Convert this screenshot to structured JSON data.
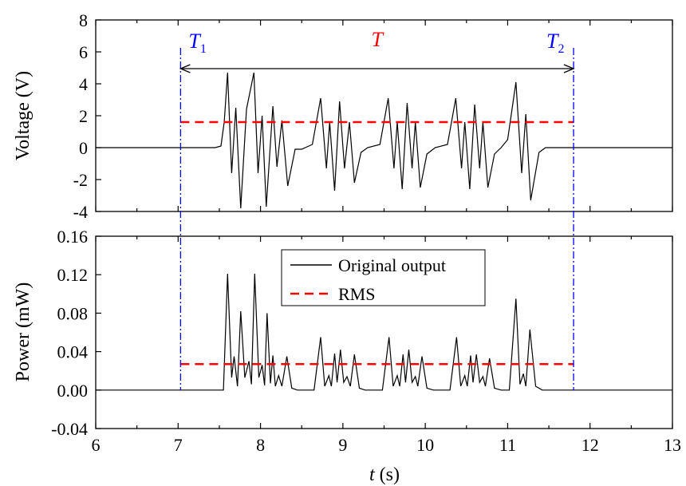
{
  "chart_data": {
    "type": "line",
    "x_axis": {
      "label_var": "t",
      "label_unit": "(s)",
      "range": [
        6,
        13
      ],
      "ticks": [
        "6",
        "7",
        "8",
        "9",
        "10",
        "11",
        "12",
        "13"
      ]
    },
    "colors": {
      "signal": "#000000",
      "rms": "#ff0000",
      "marker": "#0000ff",
      "annotation_T": "#ff0000"
    },
    "annotations": {
      "t1": {
        "x": 7.03,
        "letter": "T",
        "subscript": "1"
      },
      "t2": {
        "x": 11.8,
        "letter": "T",
        "subscript": "2"
      },
      "span": {
        "letter": "T"
      }
    },
    "panels": [
      {
        "id": "voltage",
        "ylabel": "Voltage (V)",
        "ylim": [
          -4,
          8
        ],
        "yticks": [
          "-4",
          "-2",
          "0",
          "2",
          "4",
          "6",
          "8"
        ],
        "rms_value": 1.6,
        "series": [
          {
            "kind": "signal",
            "points": [
              [
                6,
                0
              ],
              [
                7.45,
                0
              ],
              [
                7.52,
                0.1
              ],
              [
                7.56,
                1.6
              ],
              [
                7.6,
                4.7
              ],
              [
                7.65,
                -1.6
              ],
              [
                7.7,
                2.5
              ],
              [
                7.76,
                -3.8
              ],
              [
                7.83,
                2.4
              ],
              [
                7.92,
                4.7
              ],
              [
                7.97,
                -1.6
              ],
              [
                8.02,
                2.0
              ],
              [
                8.07,
                -3.7
              ],
              [
                8.15,
                2.6
              ],
              [
                8.2,
                -1.2
              ],
              [
                8.26,
                1.7
              ],
              [
                8.33,
                -2.4
              ],
              [
                8.42,
                -0.1
              ],
              [
                8.5,
                -0.1
              ],
              [
                8.63,
                0.2
              ],
              [
                8.73,
                3.1
              ],
              [
                8.8,
                -1.3
              ],
              [
                8.84,
                1.6
              ],
              [
                8.9,
                -2.7
              ],
              [
                8.96,
                2.9
              ],
              [
                9.02,
                -1.3
              ],
              [
                9.08,
                1.6
              ],
              [
                9.14,
                -2.2
              ],
              [
                9.22,
                -0.3
              ],
              [
                9.3,
                0
              ],
              [
                9.45,
                0.2
              ],
              [
                9.55,
                3.1
              ],
              [
                9.62,
                -1.3
              ],
              [
                9.66,
                1.6
              ],
              [
                9.72,
                -2.6
              ],
              [
                9.78,
                2.8
              ],
              [
                9.84,
                -1.3
              ],
              [
                9.88,
                1.6
              ],
              [
                9.94,
                -2.5
              ],
              [
                10.02,
                -0.4
              ],
              [
                10.12,
                0
              ],
              [
                10.27,
                0.2
              ],
              [
                10.37,
                3.1
              ],
              [
                10.44,
                -1.3
              ],
              [
                10.48,
                1.6
              ],
              [
                10.54,
                -2.6
              ],
              [
                10.6,
                2.7
              ],
              [
                10.66,
                -1.3
              ],
              [
                10.7,
                1.6
              ],
              [
                10.76,
                -2.5
              ],
              [
                10.84,
                -0.4
              ],
              [
                10.92,
                0
              ],
              [
                11.0,
                0.5
              ],
              [
                11.1,
                4.1
              ],
              [
                11.17,
                -1.6
              ],
              [
                11.22,
                2.1
              ],
              [
                11.28,
                -3.3
              ],
              [
                11.38,
                -0.3
              ],
              [
                11.46,
                0
              ],
              [
                13,
                0
              ]
            ]
          }
        ]
      },
      {
        "id": "power",
        "ylabel": "Power (mW)",
        "ylim": [
          -0.04,
          0.16
        ],
        "yticks": [
          "-0.04",
          "0.00",
          "0.04",
          "0.08",
          "0.12",
          "0.16"
        ],
        "rms_value": 0.027,
        "series": [
          {
            "kind": "signal",
            "points": [
              [
                6,
                0
              ],
              [
                7.55,
                0
              ],
              [
                7.6,
                0.121
              ],
              [
                7.65,
                0.013
              ],
              [
                7.68,
                0.035
              ],
              [
                7.72,
                0.004
              ],
              [
                7.76,
                0.082
              ],
              [
                7.81,
                0.013
              ],
              [
                7.86,
                0.03
              ],
              [
                7.89,
                0.006
              ],
              [
                7.93,
                0.121
              ],
              [
                7.98,
                0.013
              ],
              [
                8.02,
                0.026
              ],
              [
                8.05,
                0.005
              ],
              [
                8.08,
                0.08
              ],
              [
                8.12,
                0.007
              ],
              [
                8.15,
                0.036
              ],
              [
                8.18,
                0.004
              ],
              [
                8.22,
                0.015
              ],
              [
                8.26,
                0.004
              ],
              [
                8.32,
                0.035
              ],
              [
                8.38,
                0.002
              ],
              [
                8.45,
                0
              ],
              [
                8.65,
                0
              ],
              [
                8.73,
                0.055
              ],
              [
                8.78,
                0.004
              ],
              [
                8.83,
                0.015
              ],
              [
                8.86,
                0.004
              ],
              [
                8.9,
                0.038
              ],
              [
                8.93,
                0.008
              ],
              [
                8.97,
                0.042
              ],
              [
                9.01,
                0.008
              ],
              [
                9.05,
                0.014
              ],
              [
                9.09,
                0.004
              ],
              [
                9.14,
                0.037
              ],
              [
                9.2,
                0.002
              ],
              [
                9.27,
                0
              ],
              [
                9.48,
                0
              ],
              [
                9.56,
                0.055
              ],
              [
                9.61,
                0.004
              ],
              [
                9.66,
                0.015
              ],
              [
                9.69,
                0.004
              ],
              [
                9.73,
                0.037
              ],
              [
                9.76,
                0.008
              ],
              [
                9.8,
                0.042
              ],
              [
                9.84,
                0.008
              ],
              [
                9.88,
                0.014
              ],
              [
                9.91,
                0.004
              ],
              [
                9.96,
                0.035
              ],
              [
                10.02,
                0.002
              ],
              [
                10.1,
                0
              ],
              [
                10.3,
                0
              ],
              [
                10.38,
                0.055
              ],
              [
                10.43,
                0.004
              ],
              [
                10.48,
                0.015
              ],
              [
                10.51,
                0.004
              ],
              [
                10.55,
                0.036
              ],
              [
                10.58,
                0.008
              ],
              [
                10.62,
                0.037
              ],
              [
                10.66,
                0.008
              ],
              [
                10.7,
                0.014
              ],
              [
                10.73,
                0.004
              ],
              [
                10.78,
                0.033
              ],
              [
                10.84,
                0.002
              ],
              [
                10.92,
                0
              ],
              [
                11.02,
                0
              ],
              [
                11.1,
                0.095
              ],
              [
                11.15,
                0.006
              ],
              [
                11.19,
                0.017
              ],
              [
                11.22,
                0.004
              ],
              [
                11.27,
                0.063
              ],
              [
                11.34,
                0.004
              ],
              [
                11.42,
                0
              ],
              [
                13,
                0
              ]
            ]
          }
        ]
      }
    ],
    "legend": {
      "position": "top-center",
      "entries": [
        {
          "label": "Original output",
          "style": "solid",
          "color": "#000000"
        },
        {
          "label": "RMS",
          "style": "dashed",
          "color": "#ff0000"
        }
      ]
    }
  }
}
